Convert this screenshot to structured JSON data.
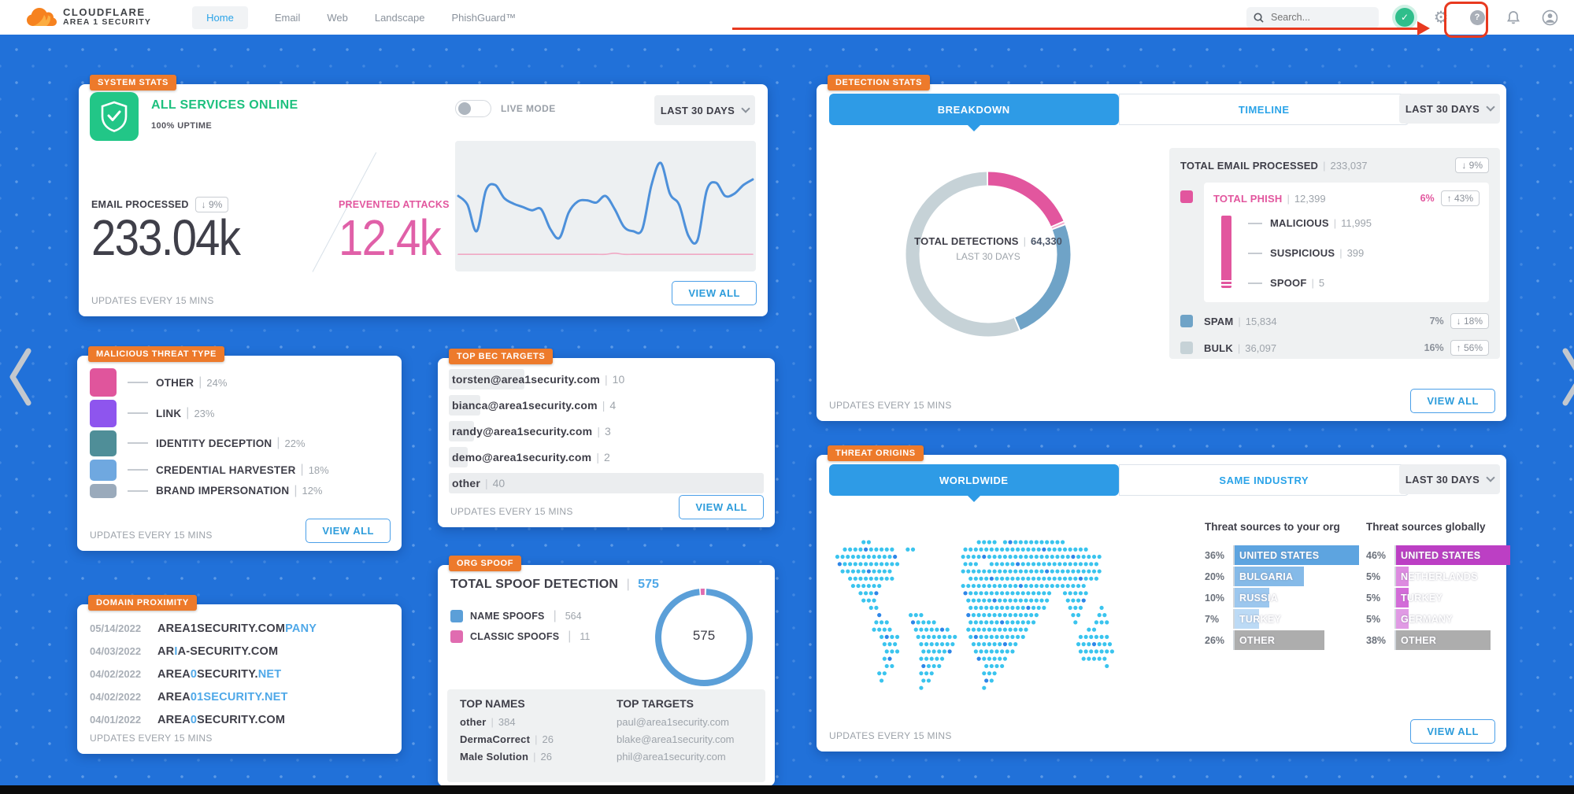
{
  "colors": {
    "background_blue": "#2171D9",
    "accent_orange": "#ED7A2B",
    "tab_blue": "#2E9BE6",
    "link_blue": "#2D9CDB",
    "status_green": "#1DC07E",
    "pink": "#E2569E",
    "annotation_red": "#E8391F",
    "spam_blue": "#6FA3C7",
    "bulk_gray": "#C6D2D7"
  },
  "header": {
    "brand_line1": "CLOUDFLARE",
    "brand_line2": "AREA 1 SECURITY",
    "nav": [
      {
        "label": "Home",
        "active": true
      },
      {
        "label": "Email",
        "active": false
      },
      {
        "label": "Web",
        "active": false
      },
      {
        "label": "Landscape",
        "active": false
      },
      {
        "label": "PhishGuard™",
        "active": false
      }
    ],
    "search_placeholder": "Search...",
    "icons": [
      "search-icon",
      "verified-shield-badge",
      "settings-gear-icon",
      "help-icon",
      "notification-bell-icon",
      "user-account-icon"
    ]
  },
  "annotation": {
    "type": "arrow-and-box-highlight",
    "target": "settings-gear-icon",
    "color": "#E8391F"
  },
  "cards": {
    "system_stats": {
      "tag": "SYSTEM STATS",
      "status": "ALL SERVICES ONLINE",
      "uptime": "100% UPTIME",
      "live_mode": "LIVE MODE",
      "period": "LAST 30 DAYS",
      "email_processed_label": "EMAIL PROCESSED",
      "email_processed_delta": "↓ 9%",
      "email_processed_value": "233.04k",
      "prevented_label": "PREVENTED ATTACKS",
      "prevented_delta": "↑ 43%",
      "prevented_value": "12.4k",
      "updates": "UPDATES EVERY 15 MINS",
      "view_all": "VIEW ALL"
    },
    "malicious_threat_type": {
      "tag": "MALICIOUS THREAT TYPE",
      "items": [
        {
          "label": "OTHER",
          "pct_text": "24%",
          "pct": 24,
          "color": "#E0559C"
        },
        {
          "label": "LINK",
          "pct_text": "23%",
          "pct": 23,
          "color": "#8E55EE"
        },
        {
          "label": "IDENTITY DECEPTION",
          "pct_text": "22%",
          "pct": 22,
          "color": "#4F8E98"
        },
        {
          "label": "CREDENTIAL HARVESTER",
          "pct_text": "18%",
          "pct": 18,
          "color": "#6FA8E0"
        },
        {
          "label": "BRAND IMPERSONATION",
          "pct_text": "12%",
          "pct": 12,
          "color": "#9AAABB"
        }
      ],
      "view_all": "VIEW ALL",
      "updates": "UPDATES EVERY 15 MINS"
    },
    "domain_proximity": {
      "tag": "DOMAIN PROXIMITY",
      "rows": [
        {
          "date": "05/14/2022",
          "parts": [
            {
              "t": "AREA1SECURITY.COM",
              "hl": false
            },
            {
              "t": "PANY",
              "hl": true
            }
          ]
        },
        {
          "date": "04/03/2022",
          "parts": [
            {
              "t": "AR",
              "hl": false
            },
            {
              "t": "I",
              "hl": true
            },
            {
              "t": "A-SECURITY.COM",
              "hl": false
            }
          ]
        },
        {
          "date": "04/02/2022",
          "parts": [
            {
              "t": "AREA",
              "hl": false
            },
            {
              "t": "0",
              "hl": true
            },
            {
              "t": "SECURITY.",
              "hl": false
            },
            {
              "t": "NET",
              "hl": true
            }
          ]
        },
        {
          "date": "04/02/2022",
          "parts": [
            {
              "t": "AREA",
              "hl": false
            },
            {
              "t": "01SECURITY.NET",
              "hl": true
            }
          ]
        },
        {
          "date": "04/01/2022",
          "parts": [
            {
              "t": "AREA",
              "hl": false
            },
            {
              "t": "0",
              "hl": true
            },
            {
              "t": "SECURITY.COM",
              "hl": false
            }
          ]
        }
      ],
      "updates": "UPDATES EVERY 15 MINS"
    },
    "top_bec_targets": {
      "tag": "TOP BEC TARGETS",
      "rows": [
        {
          "email": "torsten@area1security.com",
          "count": "10",
          "bar": 24
        },
        {
          "email": "bianca@area1security.com",
          "count": "4",
          "bar": 10
        },
        {
          "email": "randy@area1security.com",
          "count": "3",
          "bar": 8
        },
        {
          "email": "demo@area1security.com",
          "count": "2",
          "bar": 6
        },
        {
          "email": "other",
          "count": "40",
          "bar": 100
        }
      ],
      "view_all": "VIEW ALL",
      "updates": "UPDATES EVERY 15 MINS"
    },
    "org_spoof": {
      "tag": "ORG SPOOF",
      "title": "TOTAL SPOOF DETECTION",
      "total": "575",
      "legend": [
        {
          "label": "NAME SPOOFS",
          "value": "564",
          "color": "#5B9FD8"
        },
        {
          "label": "CLASSIC SPOOFS",
          "value": "11",
          "color": "#E06CB0"
        }
      ],
      "donut_center": "575",
      "top_names_title": "TOP NAMES",
      "top_names": [
        {
          "name": "other",
          "count": "384"
        },
        {
          "name": "DermaCorrect",
          "count": "26"
        },
        {
          "name": "Male Solution",
          "count": "26"
        }
      ],
      "top_targets_title": "TOP TARGETS",
      "top_targets": [
        {
          "email": "paul@area1security.com"
        },
        {
          "email": "blake@area1security.com"
        },
        {
          "email": "phil@area1security.com"
        }
      ]
    },
    "detection_stats": {
      "tag": "DETECTION STATS",
      "tabs": [
        "BREAKDOWN",
        "TIMELINE"
      ],
      "period": "LAST 30 DAYS",
      "donut_label": "TOTAL DETECTIONS",
      "donut_value": "64,330",
      "donut_sub": "LAST 30 DAYS",
      "total_row": {
        "label": "TOTAL EMAIL PROCESSED",
        "value": "233,037",
        "badge": "↓ 9%"
      },
      "phish": {
        "label": "TOTAL PHISH",
        "value": "12,399",
        "pct": "6%",
        "badge": "↑ 43%",
        "color": "#E2569E"
      },
      "phish_sub": [
        {
          "label": "MALICIOUS",
          "value": "11,995"
        },
        {
          "label": "SUSPICIOUS",
          "value": "399"
        },
        {
          "label": "SPOOF",
          "value": "5"
        }
      ],
      "spam": {
        "label": "SPAM",
        "value": "15,834",
        "pct": "7%",
        "badge": "↓ 18%",
        "color": "#6FA3C7"
      },
      "bulk": {
        "label": "BULK",
        "value": "36,097",
        "pct": "16%",
        "badge": "↑ 56%",
        "color": "#C6D2D7"
      },
      "view_all": "VIEW ALL",
      "updates": "UPDATES EVERY 15 MINS"
    },
    "threat_origins": {
      "tag": "THREAT ORIGINS",
      "tabs": [
        "WORLDWIDE",
        "SAME INDUSTRY"
      ],
      "period": "LAST 30 DAYS",
      "org_title": "Threat sources to your org",
      "org_rows": [
        {
          "pct_text": "36%",
          "label": "UNITED STATES",
          "pct": 36,
          "color": "#5DA4E0"
        },
        {
          "pct_text": "20%",
          "label": "BULGARIA",
          "pct": 20,
          "color": "#85BAE8"
        },
        {
          "pct_text": "10%",
          "label": "RUSSIA",
          "pct": 10,
          "color": "#9CC7EE"
        },
        {
          "pct_text": "7%",
          "label": "TURKEY",
          "pct": 7,
          "color": "#BCDAF5"
        },
        {
          "pct_text": "26%",
          "label": "OTHER",
          "pct": 26,
          "color": "#ADADAD"
        }
      ],
      "global_title": "Threat sources globally",
      "global_rows": [
        {
          "pct_text": "46%",
          "label": "UNITED STATES",
          "pct": 46,
          "color": "#BC3FC4"
        },
        {
          "pct_text": "5%",
          "label": "NETHERLANDS",
          "pct": 5,
          "color": "#DD8BE0"
        },
        {
          "pct_text": "5%",
          "label": "TURKEY",
          "pct": 5,
          "color": "#D36CD8"
        },
        {
          "pct_text": "5%",
          "label": "GERMANY",
          "pct": 5,
          "color": "#E09AE4"
        },
        {
          "pct_text": "38%",
          "label": "OTHER",
          "pct": 38,
          "color": "#ADADAD"
        }
      ],
      "view_all": "VIEW ALL",
      "updates": "UPDATES EVERY 15 MINS"
    }
  },
  "chart_data": [
    {
      "type": "line",
      "title": "Email processed vs prevented attacks (last 30 days)",
      "grid": false,
      "ylim": [
        0,
        100
      ],
      "series": [
        {
          "name": "email_processed",
          "color": "#4D90DA",
          "values": [
            60,
            52,
            28,
            65,
            70,
            58,
            53,
            50,
            47,
            48,
            30,
            22,
            45,
            55,
            56,
            54,
            60,
            48,
            32,
            28,
            30,
            70,
            90,
            62,
            52,
            24,
            20,
            65,
            72,
            60,
            62,
            70,
            75
          ]
        },
        {
          "name": "prevented_attacks",
          "color": "#F0A8C4",
          "values": [
            7,
            7,
            7,
            7,
            7,
            7,
            7,
            7,
            7,
            7,
            7,
            7,
            7,
            7,
            7,
            7,
            7,
            8,
            7,
            7,
            7,
            7,
            7,
            7,
            7,
            7,
            7,
            7,
            7,
            7,
            7,
            7,
            7
          ]
        }
      ]
    },
    {
      "type": "pie",
      "title": "Detection breakdown — Total detections 64,330",
      "total": 64330,
      "segments": [
        {
          "label": "MALICIOUS",
          "value": 11995,
          "color": "#E2569E"
        },
        {
          "label": "SUSPICIOUS",
          "value": 399,
          "color": "#F2A9CC"
        },
        {
          "label": "SPOOF",
          "value": 5,
          "color": "#F7CADF"
        },
        {
          "label": "SPAM",
          "value": 15834,
          "color": "#6FA3C7"
        },
        {
          "label": "BULK",
          "value": 36097,
          "color": "#C6D2D7"
        }
      ]
    },
    {
      "type": "pie",
      "title": "Org spoof — total 575",
      "total": 575,
      "segments": [
        {
          "label": "CLASSIC SPOOFS",
          "value": 11,
          "color": "#E06CB0"
        },
        {
          "label": "NAME SPOOFS",
          "value": 564,
          "color": "#5B9FD8"
        }
      ]
    },
    {
      "type": "bar",
      "title": "Threat sources to your org",
      "unit": "%",
      "categories": [
        "UNITED STATES",
        "BULGARIA",
        "RUSSIA",
        "TURKEY",
        "OTHER"
      ],
      "values": [
        36,
        20,
        10,
        7,
        26
      ]
    },
    {
      "type": "bar",
      "title": "Threat sources globally",
      "unit": "%",
      "categories": [
        "UNITED STATES",
        "NETHERLANDS",
        "TURKEY",
        "GERMANY",
        "OTHER"
      ],
      "values": [
        46,
        5,
        5,
        5,
        38
      ]
    }
  ]
}
